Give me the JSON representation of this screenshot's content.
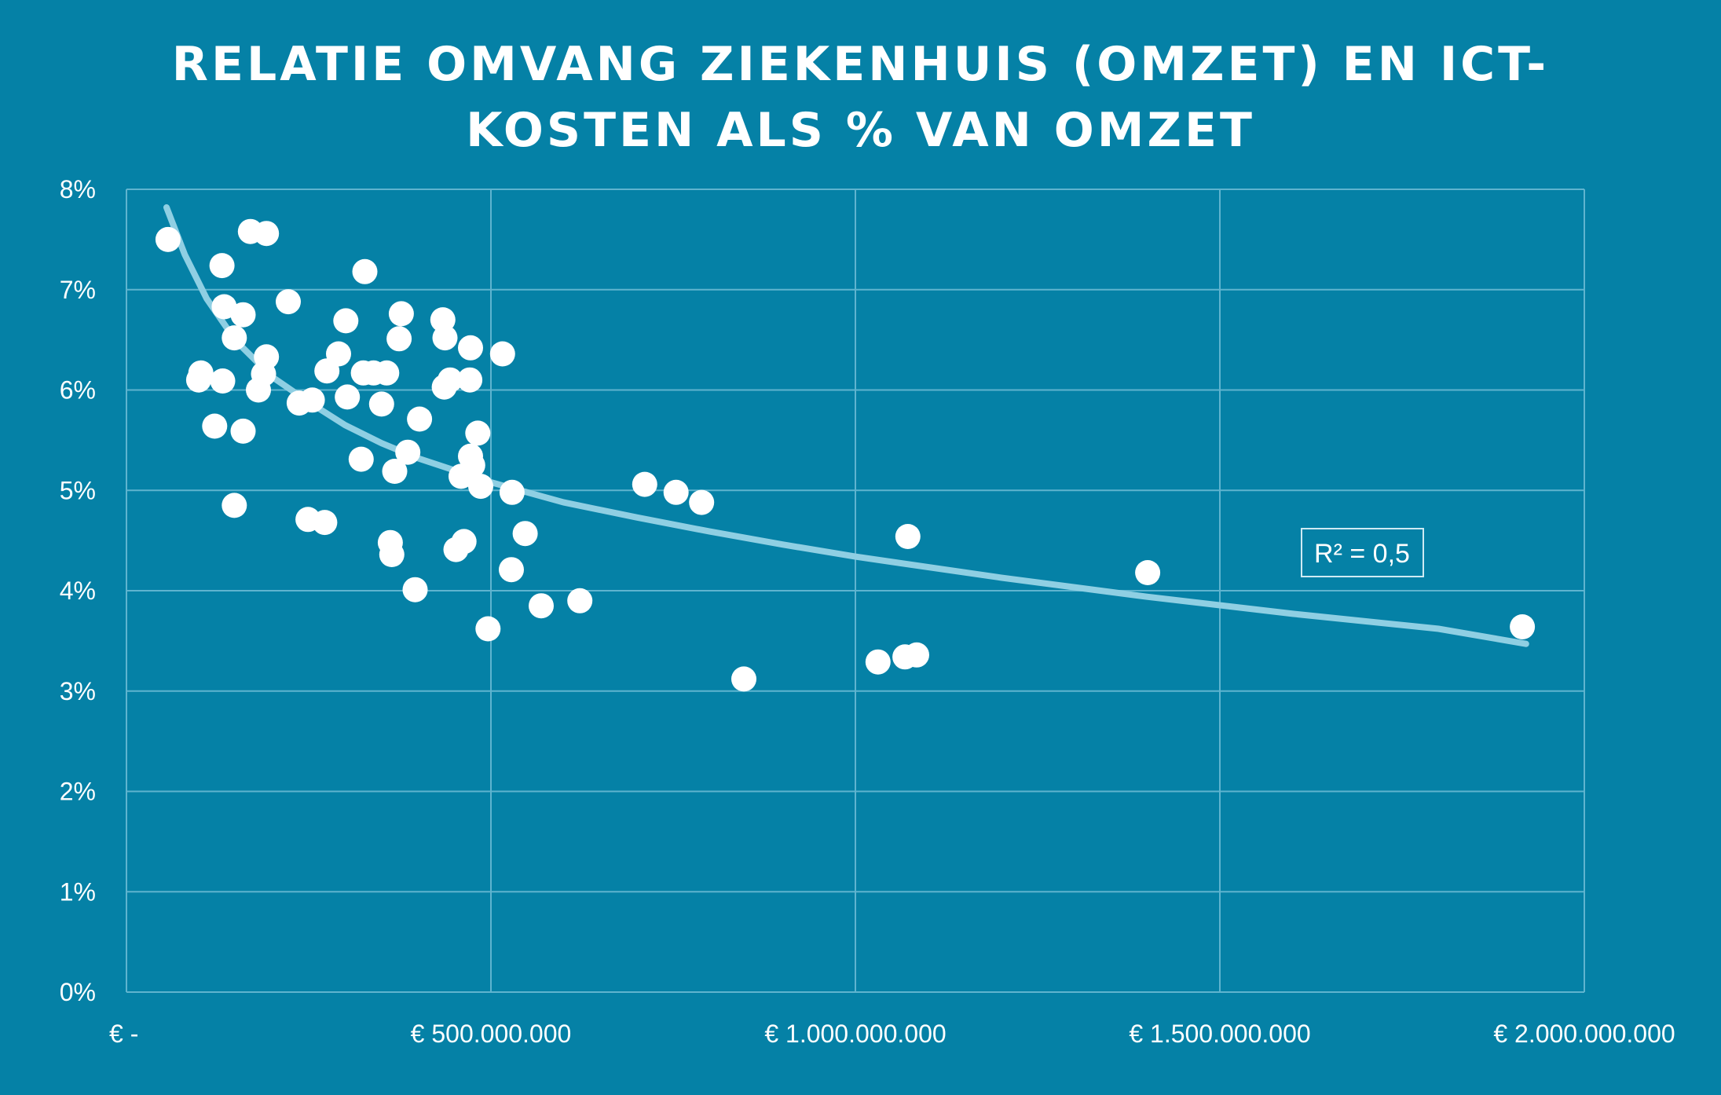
{
  "chart_data": {
    "type": "scatter",
    "title_lines": [
      "RELATIE OMVANG ZIEKENHUIS (OMZET) EN ICT-",
      "KOSTEN ALS % VAN OMZET"
    ],
    "xlim": [
      0,
      2000000000
    ],
    "ylim": [
      0,
      0.08
    ],
    "x_ticks": [
      0,
      500000000,
      1000000000,
      1500000000,
      2000000000
    ],
    "x_tick_labels": [
      "€ -",
      "€ 500.000.000",
      "€ 1.000.000.000",
      "€ 1.500.000.000",
      "€ 2.000.000.000"
    ],
    "y_ticks": [
      0,
      0.01,
      0.02,
      0.03,
      0.04,
      0.05,
      0.06,
      0.07,
      0.08
    ],
    "y_tick_labels": [
      "0%",
      "1%",
      "2%",
      "3%",
      "4%",
      "5%",
      "6%",
      "7%",
      "8%"
    ],
    "grid": true,
    "trendline": {
      "type": "logarithmic",
      "points": [
        [
          55000000,
          0.0782
        ],
        [
          80000000,
          0.0735
        ],
        [
          110000000,
          0.0691
        ],
        [
          150000000,
          0.0649
        ],
        [
          200000000,
          0.0613
        ],
        [
          250000000,
          0.0588
        ],
        [
          300000000,
          0.0565
        ],
        [
          350000000,
          0.0547
        ],
        [
          400000000,
          0.0532
        ],
        [
          500000000,
          0.0508
        ],
        [
          600000000,
          0.0488
        ],
        [
          700000000,
          0.0473
        ],
        [
          800000000,
          0.0459
        ],
        [
          900000000,
          0.0446
        ],
        [
          1000000000,
          0.0434
        ],
        [
          1200000000,
          0.0413
        ],
        [
          1400000000,
          0.0394
        ],
        [
          1600000000,
          0.0377
        ],
        [
          1800000000,
          0.0362
        ],
        [
          1920000000,
          0.0347
        ]
      ],
      "color": "#8fcfe3"
    },
    "r2_label": "R² = 0,5",
    "point_color": "#ffffff",
    "background_color": "#0581a6",
    "points": [
      [
        57000000,
        0.075
      ],
      [
        170000000,
        0.0758
      ],
      [
        192000000,
        0.0756
      ],
      [
        131000000,
        0.0724
      ],
      [
        327000000,
        0.0718
      ],
      [
        222000000,
        0.0688
      ],
      [
        134000000,
        0.0683
      ],
      [
        160000000,
        0.0675
      ],
      [
        301000000,
        0.0669
      ],
      [
        377000000,
        0.0676
      ],
      [
        434000000,
        0.067
      ],
      [
        148000000,
        0.0652
      ],
      [
        374000000,
        0.0651
      ],
      [
        437000000,
        0.0652
      ],
      [
        472000000,
        0.0642
      ],
      [
        516000000,
        0.0636
      ],
      [
        291000000,
        0.0636
      ],
      [
        192000000,
        0.0633
      ],
      [
        102000000,
        0.0617
      ],
      [
        99000000,
        0.061
      ],
      [
        132000000,
        0.0609
      ],
      [
        188000000,
        0.0616
      ],
      [
        275000000,
        0.0619
      ],
      [
        325000000,
        0.0617
      ],
      [
        339000000,
        0.0617
      ],
      [
        357000000,
        0.0617
      ],
      [
        444000000,
        0.061
      ],
      [
        471000000,
        0.061
      ],
      [
        436000000,
        0.0603
      ],
      [
        181000000,
        0.06
      ],
      [
        237000000,
        0.0587
      ],
      [
        255000000,
        0.059
      ],
      [
        303000000,
        0.0593
      ],
      [
        350000000,
        0.0586
      ],
      [
        121000000,
        0.0564
      ],
      [
        160000000,
        0.0559
      ],
      [
        402000000,
        0.0571
      ],
      [
        482000000,
        0.0557
      ],
      [
        386000000,
        0.0538
      ],
      [
        472000000,
        0.0534
      ],
      [
        322000000,
        0.0531
      ],
      [
        475000000,
        0.0525
      ],
      [
        368000000,
        0.0519
      ],
      [
        459000000,
        0.0514
      ],
      [
        486000000,
        0.0504
      ],
      [
        529000000,
        0.0498
      ],
      [
        711000000,
        0.0506
      ],
      [
        754000000,
        0.0498
      ],
      [
        789000000,
        0.0488
      ],
      [
        148000000,
        0.0485
      ],
      [
        249000000,
        0.0471
      ],
      [
        272000000,
        0.0468
      ],
      [
        547000000,
        0.0457
      ],
      [
        1072000000,
        0.0454
      ],
      [
        362000000,
        0.0448
      ],
      [
        463000000,
        0.0449
      ],
      [
        452000000,
        0.0441
      ],
      [
        364000000,
        0.0436
      ],
      [
        528000000,
        0.0421
      ],
      [
        1401000000,
        0.0418
      ],
      [
        396000000,
        0.0401
      ],
      [
        622000000,
        0.039
      ],
      [
        569000000,
        0.0385
      ],
      [
        1915000000,
        0.0364
      ],
      [
        496000000,
        0.0362
      ],
      [
        1084000000,
        0.0336
      ],
      [
        1068000000,
        0.0334
      ],
      [
        1031000000,
        0.0329
      ],
      [
        847000000,
        0.0312
      ]
    ]
  }
}
